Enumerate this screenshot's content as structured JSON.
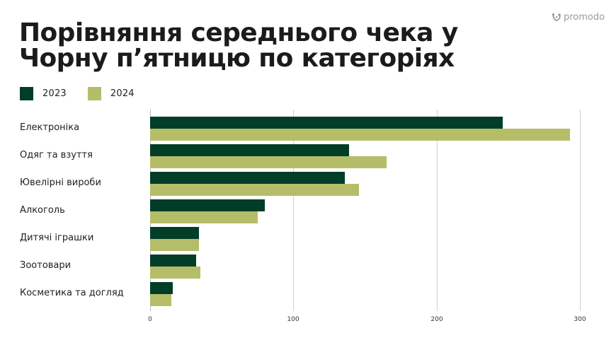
{
  "brand": {
    "name": "promodo",
    "icon": "promodo-logo-icon"
  },
  "title": {
    "line1": "Порівняння середнього чека у",
    "line2": "Чорну п’ятницю по категоріях"
  },
  "legend": [
    {
      "label": "2023",
      "color": "#023d28"
    },
    {
      "label": "2024",
      "color": "#b5bd68"
    }
  ],
  "chart_data": {
    "type": "bar",
    "orientation": "horizontal",
    "title": "Порівняння середнього чека у Чорну п’ятницю по категоріях",
    "xlabel": "",
    "ylabel": "",
    "categories": [
      "Електроніка",
      "Одяг та взуття",
      "Ювелірні вироби",
      "Алкоголь",
      "Дитячі іграшки",
      "Зоотовари",
      "Косметика та догляд"
    ],
    "series": [
      {
        "name": "2023",
        "color": "#023d28",
        "values": [
          246,
          139,
          136,
          80,
          34,
          32,
          16
        ]
      },
      {
        "name": "2024",
        "color": "#b5bd68",
        "values": [
          293,
          165,
          146,
          75,
          34,
          35,
          15
        ]
      }
    ],
    "xlim": [
      0,
      300
    ],
    "xticks": [
      "0",
      "100",
      "200",
      "300"
    ],
    "grid": true,
    "legend_position": "top-left"
  }
}
